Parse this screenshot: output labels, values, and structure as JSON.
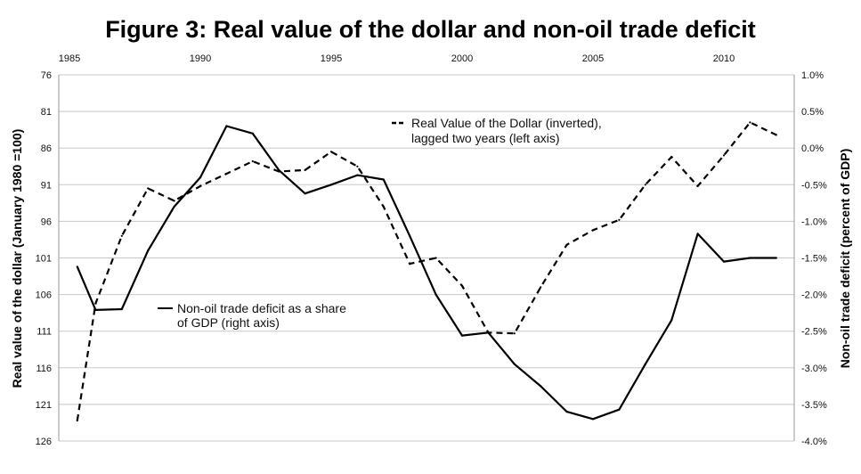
{
  "chart_data": {
    "type": "line",
    "title": "Figure 3: Real value of the dollar and non-oil trade deficit",
    "x_ticks": [
      "1985",
      "1990",
      "1995",
      "2000",
      "2005",
      "2010"
    ],
    "xlim": [
      1985,
      2012
    ],
    "left_axis": {
      "label": "Real value of the dollar (January 1980 =100)",
      "ticks": [
        "76",
        "81",
        "86",
        "91",
        "96",
        "101",
        "106",
        "111",
        "116",
        "121",
        "126"
      ],
      "ylim": [
        76,
        126
      ],
      "inverted": true
    },
    "right_axis": {
      "label": "Non-oil trade deficit (percent of GDP)",
      "ticks": [
        "1.0%",
        "0.5%",
        "0.0%",
        "-0.5%",
        "-1.0%",
        "-1.5%",
        "-2.0%",
        "-2.5%",
        "-3.0%",
        "-3.5%",
        "-4.0%"
      ],
      "ylim": [
        -4.0,
        1.0
      ]
    },
    "grid": true,
    "series": [
      {
        "name": "Real Value of the Dollar (inverted), lagged two years (left axis)",
        "legend_line2": "lagged two years (left axis)",
        "legend_line1": "Real Value of the Dollar (inverted),",
        "axis": "left",
        "style": "dashed",
        "x": [
          1985.3,
          1986,
          1987,
          1988,
          1989,
          1990,
          1991,
          1992,
          1993,
          1994,
          1995,
          1996,
          1997,
          1998,
          1999,
          2000,
          2001,
          2002,
          2003,
          2004,
          2005,
          2006,
          2007,
          2008,
          2009,
          2010,
          2011,
          2012
        ],
        "values": [
          123.2,
          107.2,
          98.0,
          91.5,
          93.2,
          91.2,
          89.5,
          87.8,
          89.2,
          89.0,
          86.5,
          88.5,
          94.0,
          101.8,
          101.0,
          104.8,
          111.2,
          111.3,
          105.0,
          99.2,
          97.2,
          95.8,
          91.0,
          87.2,
          91.2,
          87.0,
          82.5,
          84.2
        ]
      },
      {
        "name": "Non-oil trade deficit as a share of GDP (right axis)",
        "legend_line1": "Non-oil trade deficit as a share",
        "legend_line2": "of GDP (right axis)",
        "axis": "right",
        "style": "solid",
        "x": [
          1985.3,
          1986,
          1987,
          1988,
          1989,
          1990,
          1991,
          1992,
          1993,
          1994,
          1995,
          1996,
          1997,
          1998,
          1999,
          2000,
          2001,
          2002,
          2003,
          2004,
          2005,
          2006,
          2007,
          2008,
          2009,
          2010,
          2011,
          2012
        ],
        "values": [
          -1.62,
          -2.21,
          -2.2,
          -1.4,
          -0.8,
          -0.4,
          0.3,
          0.2,
          -0.3,
          -0.62,
          -0.5,
          -0.37,
          -0.43,
          -1.2,
          -2.0,
          -2.56,
          -2.52,
          -2.95,
          -3.25,
          -3.6,
          -3.7,
          -3.57,
          -2.95,
          -2.35,
          -1.17,
          -1.55,
          -1.5,
          -1.5
        ]
      }
    ]
  }
}
